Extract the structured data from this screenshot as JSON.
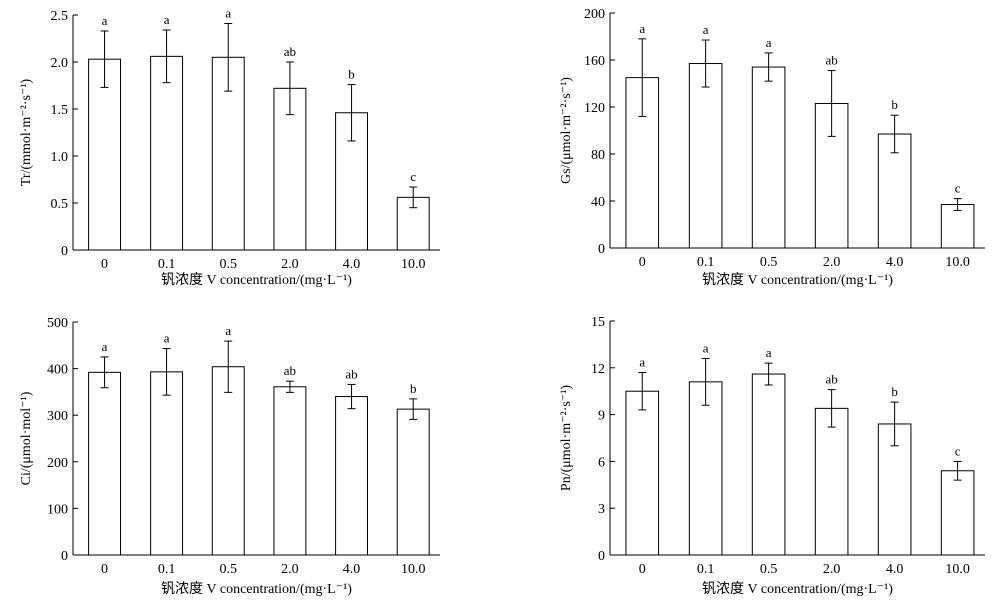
{
  "chart_data": [
    {
      "type": "bar",
      "categories": [
        "0",
        "0.1",
        "0.5",
        "2.0",
        "4.0",
        "10.0"
      ],
      "values": [
        2.03,
        2.06,
        2.05,
        1.72,
        1.46,
        0.56
      ],
      "errors": [
        0.3,
        0.28,
        0.36,
        0.28,
        0.3,
        0.11
      ],
      "letters": [
        "a",
        "a",
        "a",
        "ab",
        "b",
        "c"
      ],
      "xlabel": "钒浓度 V concentration/(mg·L⁻¹)",
      "ylabel": "Tr/(mmol·m⁻²·s⁻¹)",
      "ylim": [
        0,
        2.5
      ],
      "yticks": [
        "0",
        "0.5",
        "1.0",
        "1.5",
        "2.0",
        "2.5"
      ]
    },
    {
      "type": "bar",
      "categories": [
        "0",
        "0.1",
        "0.5",
        "2.0",
        "4.0",
        "10.0"
      ],
      "values": [
        145,
        157,
        154,
        123,
        97,
        37
      ],
      "errors": [
        33,
        20,
        12,
        28,
        16,
        5
      ],
      "letters": [
        "a",
        "a",
        "a",
        "ab",
        "b",
        "c"
      ],
      "xlabel": "钒浓度 V concentration/(mg·L⁻¹)",
      "ylabel": "Gs/(μmol·m⁻²·s⁻¹)",
      "ylim": [
        0,
        200
      ],
      "yticks": [
        "0",
        "40",
        "80",
        "120",
        "160",
        "200"
      ]
    },
    {
      "type": "bar",
      "categories": [
        "0",
        "0.1",
        "0.5",
        "2.0",
        "4.0",
        "10.0"
      ],
      "values": [
        392,
        393,
        404,
        361,
        340,
        313
      ],
      "errors": [
        33,
        50,
        55,
        12,
        26,
        22
      ],
      "letters": [
        "a",
        "a",
        "a",
        "ab",
        "ab",
        "b"
      ],
      "xlabel": "钒浓度 V concentration/(mg·L⁻¹)",
      "ylabel": "Ci/(μmol·mol⁻¹)",
      "ylim": [
        0,
        500
      ],
      "yticks": [
        "0",
        "100",
        "200",
        "300",
        "400",
        "500"
      ]
    },
    {
      "type": "bar",
      "categories": [
        "0",
        "0.1",
        "0.5",
        "2.0",
        "4.0",
        "10.0"
      ],
      "values": [
        10.5,
        11.1,
        11.6,
        9.4,
        8.4,
        5.4
      ],
      "errors": [
        1.2,
        1.5,
        0.7,
        1.2,
        1.4,
        0.6
      ],
      "letters": [
        "a",
        "a",
        "a",
        "ab",
        "b",
        "c"
      ],
      "xlabel": "钒浓度 V concentration/(mg·L⁻¹)",
      "ylabel": "Pn/(μmol·m⁻²·s⁻¹)",
      "ylim": [
        0,
        15
      ],
      "yticks": [
        "0",
        "3",
        "6",
        "9",
        "12",
        "15"
      ]
    }
  ]
}
